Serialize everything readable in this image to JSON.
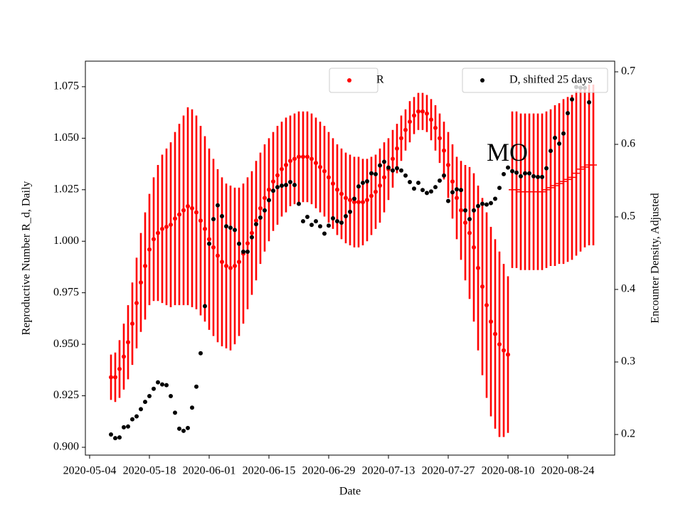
{
  "chart_data": {
    "type": "scatter",
    "x_label": "Date",
    "y_label": "Reproductive Number R_d, Daily",
    "y2_label": "Encounter Density, Adjusted",
    "y_axis_color": "red",
    "x": [
      "2020-05-09",
      "2020-05-10",
      "2020-05-11",
      "2020-05-12",
      "2020-05-13",
      "2020-05-14",
      "2020-05-15",
      "2020-05-16",
      "2020-05-17",
      "2020-05-18",
      "2020-05-19",
      "2020-05-20",
      "2020-05-21",
      "2020-05-22",
      "2020-05-23",
      "2020-05-24",
      "2020-05-25",
      "2020-05-26",
      "2020-05-27",
      "2020-05-28",
      "2020-05-29",
      "2020-05-30",
      "2020-05-31",
      "2020-06-01",
      "2020-06-02",
      "2020-06-03",
      "2020-06-04",
      "2020-06-05",
      "2020-06-06",
      "2020-06-07",
      "2020-06-08",
      "2020-06-09",
      "2020-06-10",
      "2020-06-11",
      "2020-06-12",
      "2020-06-13",
      "2020-06-14",
      "2020-06-15",
      "2020-06-16",
      "2020-06-17",
      "2020-06-18",
      "2020-06-19",
      "2020-06-20",
      "2020-06-21",
      "2020-06-22",
      "2020-06-23",
      "2020-06-24",
      "2020-06-25",
      "2020-06-26",
      "2020-06-27",
      "2020-06-28",
      "2020-06-29",
      "2020-06-30",
      "2020-07-01",
      "2020-07-02",
      "2020-07-03",
      "2020-07-04",
      "2020-07-05",
      "2020-07-06",
      "2020-07-07",
      "2020-07-08",
      "2020-07-09",
      "2020-07-10",
      "2020-07-11",
      "2020-07-12",
      "2020-07-13",
      "2020-07-14",
      "2020-07-15",
      "2020-07-16",
      "2020-07-17",
      "2020-07-18",
      "2020-07-19",
      "2020-07-20",
      "2020-07-21",
      "2020-07-22",
      "2020-07-23",
      "2020-07-24",
      "2020-07-25",
      "2020-07-26",
      "2020-07-27",
      "2020-07-28",
      "2020-07-29",
      "2020-07-30",
      "2020-07-31",
      "2020-08-01",
      "2020-08-02",
      "2020-08-03",
      "2020-08-04",
      "2020-08-05",
      "2020-08-06",
      "2020-08-07",
      "2020-08-08",
      "2020-08-09",
      "2020-08-10",
      "2020-08-11",
      "2020-08-12",
      "2020-08-13",
      "2020-08-14",
      "2020-08-15",
      "2020-08-16",
      "2020-08-17",
      "2020-08-18",
      "2020-08-19",
      "2020-08-20",
      "2020-08-21",
      "2020-08-22",
      "2020-08-23",
      "2020-08-24",
      "2020-08-25",
      "2020-08-26",
      "2020-08-27",
      "2020-08-28",
      "2020-08-29",
      "2020-08-30"
    ],
    "series": [
      {
        "name": "R",
        "color": "red",
        "marker": "o",
        "legend": "upper center",
        "values": [
          0.934,
          0.934,
          0.938,
          0.944,
          0.951,
          0.96,
          0.97,
          0.98,
          0.988,
          0.996,
          1.001,
          1.004,
          1.006,
          1.007,
          1.008,
          1.011,
          1.013,
          1.015,
          1.017,
          1.016,
          1.014,
          1.01,
          1.006,
          1.001,
          0.997,
          0.993,
          0.99,
          0.988,
          0.987,
          0.988,
          0.99,
          0.994,
          0.999,
          1.004,
          1.01,
          1.016,
          1.021,
          1.025,
          1.029,
          1.032,
          1.035,
          1.037,
          1.039,
          1.04,
          1.041,
          1.041,
          1.041,
          1.04,
          1.038,
          1.036,
          1.034,
          1.031,
          1.028,
          1.025,
          1.023,
          1.021,
          1.02,
          1.019,
          1.019,
          1.019,
          1.02,
          1.022,
          1.024,
          1.027,
          1.031,
          1.035,
          1.04,
          1.045,
          1.05,
          1.054,
          1.058,
          1.061,
          1.063,
          1.063,
          1.062,
          1.059,
          1.055,
          1.05,
          1.044,
          1.037,
          1.029,
          1.021,
          1.015,
          1.009,
          1.004,
          0.997,
          0.987,
          0.978,
          0.969,
          0.961,
          0.955,
          0.95,
          0.947,
          0.945,
          null,
          null,
          null,
          null,
          null,
          null,
          null,
          null,
          null,
          null,
          null,
          null,
          null,
          null,
          null,
          null,
          null,
          null,
          null,
          null
        ],
        "errors": [
          0.011,
          0.012,
          0.014,
          0.016,
          0.018,
          0.02,
          0.022,
          0.024,
          0.026,
          0.027,
          0.03,
          0.033,
          0.036,
          0.038,
          0.04,
          0.042,
          0.044,
          0.046,
          0.048,
          0.048,
          0.047,
          0.046,
          0.045,
          0.044,
          0.043,
          0.042,
          0.041,
          0.04,
          0.04,
          0.038,
          0.036,
          0.034,
          0.032,
          0.03,
          0.029,
          0.027,
          0.026,
          0.025,
          0.024,
          0.024,
          0.023,
          0.023,
          0.022,
          0.022,
          0.022,
          0.022,
          0.022,
          0.022,
          0.022,
          0.022,
          0.022,
          0.022,
          0.022,
          0.022,
          0.022,
          0.022,
          0.022,
          0.022,
          0.022,
          0.021,
          0.02,
          0.019,
          0.018,
          0.018,
          0.017,
          0.015,
          0.014,
          0.012,
          0.011,
          0.01,
          0.01,
          0.009,
          0.009,
          0.009,
          0.009,
          0.01,
          0.011,
          0.012,
          0.014,
          0.016,
          0.018,
          0.02,
          0.024,
          0.028,
          0.032,
          0.036,
          0.04,
          0.043,
          0.045,
          0.046,
          0.046,
          0.045,
          0.042,
          0.038,
          null,
          null,
          null,
          null,
          null,
          null,
          null,
          null,
          null,
          null,
          null,
          null,
          null,
          null,
          null,
          null,
          null,
          null,
          null,
          null
        ]
      },
      {
        "color": "red",
        "marker": "_",
        "values": [
          null,
          null,
          null,
          null,
          null,
          null,
          null,
          null,
          null,
          null,
          null,
          null,
          null,
          null,
          null,
          null,
          null,
          null,
          null,
          null,
          null,
          null,
          null,
          null,
          null,
          null,
          null,
          null,
          null,
          null,
          null,
          null,
          null,
          null,
          null,
          null,
          null,
          null,
          null,
          null,
          null,
          null,
          null,
          null,
          null,
          null,
          null,
          null,
          null,
          null,
          null,
          null,
          null,
          null,
          null,
          null,
          null,
          null,
          null,
          null,
          null,
          null,
          null,
          null,
          null,
          null,
          null,
          null,
          null,
          null,
          null,
          null,
          null,
          null,
          null,
          null,
          null,
          null,
          null,
          null,
          null,
          null,
          null,
          null,
          null,
          null,
          null,
          null,
          null,
          null,
          null,
          null,
          null,
          null,
          1.025,
          1.025,
          1.024,
          1.024,
          1.024,
          1.024,
          1.024,
          1.024,
          1.025,
          1.026,
          1.027,
          1.028,
          1.029,
          1.03,
          1.031,
          1.033,
          1.035,
          1.036,
          1.037,
          1.037
        ],
        "errors": [
          null,
          null,
          null,
          null,
          null,
          null,
          null,
          null,
          null,
          null,
          null,
          null,
          null,
          null,
          null,
          null,
          null,
          null,
          null,
          null,
          null,
          null,
          null,
          null,
          null,
          null,
          null,
          null,
          null,
          null,
          null,
          null,
          null,
          null,
          null,
          null,
          null,
          null,
          null,
          null,
          null,
          null,
          null,
          null,
          null,
          null,
          null,
          null,
          null,
          null,
          null,
          null,
          null,
          null,
          null,
          null,
          null,
          null,
          null,
          null,
          null,
          null,
          null,
          null,
          null,
          null,
          null,
          null,
          null,
          null,
          null,
          null,
          null,
          null,
          null,
          null,
          null,
          null,
          null,
          null,
          null,
          null,
          null,
          null,
          null,
          null,
          null,
          null,
          null,
          null,
          null,
          null,
          null,
          null,
          0.038,
          0.038,
          0.038,
          0.038,
          0.038,
          0.038,
          0.038,
          0.038,
          0.038,
          0.038,
          0.039,
          0.039,
          0.04,
          0.04,
          0.04,
          0.04,
          0.04,
          0.039,
          0.039,
          0.039
        ]
      },
      {
        "name": "D, shifted 25 days",
        "color": "black",
        "marker": "o",
        "axis": "y2",
        "legend": "upper right",
        "values": [
          0.2,
          0.195,
          0.196,
          0.21,
          0.211,
          0.221,
          0.225,
          0.235,
          0.245,
          0.253,
          0.263,
          0.272,
          0.269,
          0.268,
          0.253,
          0.23,
          0.208,
          0.205,
          0.209,
          0.237,
          0.266,
          0.312,
          0.377,
          0.463,
          0.497,
          0.516,
          0.501,
          0.487,
          0.485,
          0.482,
          0.463,
          0.452,
          0.452,
          0.472,
          0.49,
          0.499,
          0.509,
          0.523,
          0.536,
          0.541,
          0.543,
          0.544,
          0.548,
          0.544,
          0.518,
          0.494,
          0.5,
          0.489,
          0.494,
          0.487,
          0.477,
          0.488,
          0.498,
          0.494,
          0.492,
          0.501,
          0.507,
          0.525,
          0.542,
          0.547,
          0.549,
          0.56,
          0.559,
          0.571,
          0.576,
          0.568,
          0.564,
          0.567,
          0.564,
          0.557,
          0.548,
          0.539,
          0.547,
          0.537,
          0.533,
          0.535,
          0.541,
          0.55,
          0.557,
          0.522,
          0.534,
          0.538,
          0.537,
          0.509,
          0.497,
          0.509,
          0.515,
          0.518,
          0.517,
          0.519,
          0.525,
          0.54,
          0.559,
          0.568,
          0.563,
          0.561,
          0.556,
          0.56,
          0.56,
          0.556,
          0.555,
          0.555,
          0.567,
          0.591,
          0.609,
          0.601,
          0.615,
          0.643,
          0.662,
          0.679,
          0.678,
          0.678,
          0.658,
          null
        ]
      }
    ],
    "annotations": [
      {
        "text": "MO",
        "x": "2020-08-05",
        "y": 1.042
      }
    ],
    "xlim": [
      "2020-05-03",
      "2020-09-04"
    ],
    "xticks": [
      "2020-05-04",
      "2020-05-18",
      "2020-06-01",
      "2020-06-15",
      "2020-06-29",
      "2020-07-13",
      "2020-07-27",
      "2020-08-10",
      "2020-08-24"
    ],
    "ylim": [
      0.8962,
      1.0874
    ],
    "yticks": [
      {
        "value": 0.9,
        "label": "0.900"
      },
      {
        "value": 0.925,
        "label": "0.925"
      },
      {
        "value": 0.95,
        "label": "0.950"
      },
      {
        "value": 0.975,
        "label": "0.975"
      },
      {
        "value": 1,
        "label": "1.000"
      },
      {
        "value": 1.025,
        "label": "1.025"
      },
      {
        "value": 1.05,
        "label": "1.050"
      },
      {
        "value": 1.075,
        "label": "1.075"
      }
    ],
    "y2lim": [
      0.1716,
      0.7147
    ],
    "y2ticks": [
      0.2,
      0.3,
      0.4,
      0.5,
      0.6,
      0.7
    ]
  }
}
